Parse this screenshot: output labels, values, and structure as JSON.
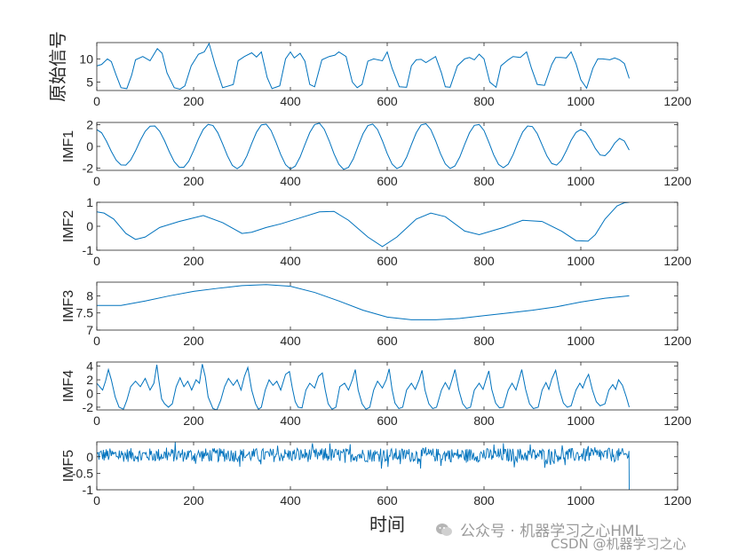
{
  "chart_data": {
    "type": "line",
    "xlabel": "时间",
    "xlim": [
      0,
      1200
    ],
    "xticks": [
      0,
      200,
      400,
      600,
      800,
      1000,
      1200
    ],
    "line_color": "#0072BD",
    "grid": false,
    "panels": [
      {
        "ylabel": "原始信号",
        "ylim": [
          3.2,
          13.5
        ],
        "yticks": [
          5,
          10
        ],
        "series": [
          {
            "x": [
              0,
              10,
              22,
              30,
              40,
              50,
              62,
              72,
              80,
              95,
              110,
              125,
              135,
              145,
              160,
              172,
              182,
              195,
              210,
              222,
              232,
              245,
              260,
              282,
              292,
              305,
              320,
              330,
              340,
              352,
              362,
              378,
              390,
              400,
              408,
              420,
              430,
              440,
              450,
              465,
              480,
              492,
              500,
              515,
              528,
              538,
              548,
              560,
              572,
              590,
              600,
              610,
              625,
              640,
              650,
              660,
              670,
              680,
              700,
              712,
              720,
              730,
              745,
              760,
              770,
              780,
              790,
              800,
              812,
              825,
              835,
              850,
              860,
              875,
              888,
              898,
              910,
              925,
              940,
              948,
              958,
              970,
              980,
              990,
              1000,
              1012,
              1025,
              1035,
              1045,
              1060,
              1070,
              1080,
              1090,
              1100
            ],
            "y": [
              8.5,
              8.8,
              10.0,
              9.4,
              6.5,
              3.8,
              3.6,
              6.5,
              9.8,
              10.5,
              9.6,
              12.2,
              11.2,
              7.0,
              3.8,
              3.5,
              4.2,
              8.5,
              11.0,
              11.5,
              13.3,
              8.5,
              3.8,
              4.5,
              9.6,
              10.5,
              11.3,
              10.4,
              11.5,
              6.0,
              3.6,
              4.2,
              10.0,
              11.5,
              10.2,
              11.2,
              9.5,
              4.5,
              4.0,
              9.8,
              10.5,
              10.8,
              11.5,
              10.5,
              5.0,
              3.8,
              4.5,
              9.5,
              10.0,
              9.6,
              11.5,
              8.0,
              4.0,
              3.9,
              8.5,
              9.8,
              9.9,
              9.2,
              10.5,
              7.0,
              4.0,
              3.9,
              8.5,
              10.0,
              10.3,
              9.8,
              11.0,
              10.0,
              5.0,
              3.9,
              8.5,
              9.8,
              10.5,
              10.3,
              11.5,
              8.0,
              4.5,
              4.3,
              8.8,
              10.3,
              10.3,
              10.2,
              11.5,
              9.0,
              5.5,
              3.7,
              8.0,
              10.0,
              10.0,
              9.8,
              10.2,
              9.8,
              9.0,
              5.8
            ]
          }
        ]
      },
      {
        "ylabel": "IMF1",
        "ylim": [
          -2.2,
          2.2
        ],
        "yticks": [
          -2,
          0,
          2
        ],
        "series": [
          {
            "x": [
              0,
              10,
              20,
              30,
              40,
              50,
              60,
              70,
              80,
              90,
              100,
              110,
              120,
              130,
              140,
              150,
              160,
              170,
              180,
              190,
              200,
              210,
              220,
              230,
              240,
              250,
              260,
              270,
              280,
              290,
              300,
              310,
              320,
              330,
              340,
              350,
              360,
              370,
              380,
              390,
              400,
              410,
              420,
              430,
              440,
              450,
              460,
              470,
              480,
              490,
              500,
              510,
              520,
              530,
              540,
              550,
              560,
              570,
              580,
              590,
              600,
              610,
              620,
              630,
              640,
              650,
              660,
              670,
              680,
              690,
              700,
              710,
              720,
              730,
              740,
              750,
              760,
              770,
              780,
              790,
              800,
              810,
              820,
              830,
              840,
              850,
              860,
              870,
              880,
              890,
              900,
              910,
              920,
              930,
              940,
              950,
              960,
              970,
              980,
              990,
              1000,
              1010,
              1020,
              1030,
              1040,
              1050,
              1060,
              1070,
              1080,
              1090,
              1100
            ],
            "y": [
              1.54,
              1.25,
              0.48,
              -0.46,
              -1.26,
              -1.7,
              -1.72,
              -1.25,
              -0.41,
              0.56,
              1.38,
              1.85,
              1.87,
              1.38,
              0.52,
              -0.51,
              -1.4,
              -1.9,
              -1.91,
              -1.36,
              -0.39,
              0.68,
              1.57,
              2.02,
              1.92,
              1.26,
              0.23,
              -0.87,
              -1.74,
              -2.05,
              -1.72,
              -0.88,
              0.26,
              1.31,
              1.98,
              2.04,
              1.46,
              0.41,
              -0.75,
              -1.68,
              -2.08,
              -1.81,
              -0.98,
              0.17,
              1.27,
              2.0,
              2.13,
              1.57,
              0.53,
              -0.67,
              -1.64,
              -2.11,
              -1.92,
              -1.14,
              0.04,
              1.16,
              1.91,
              2.05,
              1.55,
              0.52,
              -0.66,
              -1.62,
              -2.04,
              -1.81,
              -1.0,
              0.16,
              1.25,
              1.97,
              2.08,
              1.55,
              0.52,
              -0.66,
              -1.61,
              -2.03,
              -1.79,
              -0.97,
              0.18,
              1.25,
              1.93,
              2.01,
              1.46,
              0.38,
              -0.78,
              -1.65,
              -1.96,
              -1.63,
              -0.77,
              0.35,
              1.33,
              1.87,
              1.82,
              1.17,
              0.14,
              -0.88,
              -1.57,
              -1.72,
              -1.27,
              -0.41,
              0.56,
              1.28,
              1.55,
              1.31,
              0.65,
              -0.19,
              -0.79,
              -0.85,
              -0.4,
              0.3,
              0.73,
              0.49,
              -0.34
            ]
          }
        ]
      },
      {
        "ylabel": "IMF2",
        "ylim": [
          -1,
          1
        ],
        "yticks": [
          -1,
          0,
          1
        ],
        "series": [
          {
            "x": [
              0,
              15,
              35,
              60,
              80,
              100,
              130,
              170,
              220,
              260,
              300,
              320,
              350,
              380,
              420,
              460,
              490,
              520,
              560,
              590,
              620,
              660,
              690,
              720,
              760,
              790,
              840,
              880,
              920,
              960,
              990,
              1015,
              1030,
              1050,
              1075,
              1090,
              1100
            ],
            "y": [
              0.6,
              0.55,
              0.3,
              -0.3,
              -0.55,
              -0.45,
              -0.05,
              0.2,
              0.45,
              0.15,
              -0.3,
              -0.25,
              -0.05,
              0.1,
              0.35,
              0.6,
              0.62,
              0.25,
              -0.45,
              -0.85,
              -0.45,
              0.3,
              0.55,
              0.4,
              -0.2,
              -0.35,
              -0.05,
              0.25,
              0.2,
              -0.2,
              -0.6,
              -0.62,
              -0.35,
              0.3,
              0.85,
              0.98,
              1.0
            ]
          }
        ]
      },
      {
        "ylabel": "IMF3",
        "ylim": [
          7,
          8.4
        ],
        "yticks": [
          7,
          7.5,
          8
        ],
        "series": [
          {
            "x": [
              0,
              50,
              100,
              150,
              200,
              250,
              300,
              350,
              400,
              450,
              500,
              550,
              600,
              650,
              700,
              750,
              800,
              850,
              900,
              950,
              1000,
              1050,
              1100
            ],
            "y": [
              7.72,
              7.72,
              7.85,
              8.0,
              8.13,
              8.22,
              8.3,
              8.33,
              8.28,
              8.1,
              7.85,
              7.58,
              7.38,
              7.3,
              7.3,
              7.34,
              7.42,
              7.5,
              7.58,
              7.68,
              7.82,
              7.93,
              8.0
            ]
          }
        ]
      },
      {
        "ylabel": "IMF4",
        "ylim": [
          -2.4,
          4.6
        ],
        "yticks": [
          -2,
          0,
          2,
          4
        ],
        "series": [
          {
            "x": [
              0,
              6,
              12,
              18,
              24,
              30,
              38,
              46,
              55,
              62,
              70,
              80,
              90,
              100,
              110,
              118,
              124,
              128,
              134,
              140,
              148,
              156,
              164,
              172,
              180,
              188,
              196,
              205,
              212,
              218,
              224,
              230,
              240,
              248,
              256,
              264,
              272,
              282,
              290,
              298,
              305,
              312,
              320,
              328,
              334,
              340,
              348,
              356,
              364,
              372,
              380,
              390,
              398,
              404,
              410,
              416,
              424,
              432,
              440,
              450,
              458,
              466,
              472,
              478,
              486,
              494,
              502,
              512,
              520,
              528,
              534,
              540,
              548,
              556,
              564,
              572,
              580,
              590,
              598,
              604,
              610,
              616,
              624,
              632,
              640,
              650,
              658,
              666,
              672,
              678,
              686,
              694,
              702,
              712,
              720,
              728,
              734,
              740,
              748,
              756,
              764,
              772,
              780,
              790,
              798,
              804,
              810,
              816,
              824,
              832,
              840,
              850,
              858,
              866,
              872,
              878,
              886,
              894,
              902,
              912,
              920,
              928,
              934,
              940,
              948,
              956,
              964,
              972,
              980,
              990,
              998,
              1004,
              1010,
              1016,
              1024,
              1032,
              1040,
              1050,
              1058,
              1066,
              1072,
              1078,
              1086,
              1094,
              1100
            ],
            "y": [
              1.5,
              1.0,
              0.5,
              1.8,
              3.5,
              2.0,
              -0.5,
              -2.0,
              -2.3,
              -1.0,
              1.0,
              1.8,
              1.0,
              2.2,
              0.5,
              1.5,
              4.2,
              2.0,
              -0.8,
              -1.5,
              -2.0,
              -1.5,
              1.0,
              2.3,
              1.0,
              1.8,
              0.5,
              2.0,
              1.5,
              4.3,
              2.5,
              -0.5,
              -2.2,
              -2.4,
              -1.0,
              1.0,
              2.2,
              1.2,
              2.0,
              0.5,
              2.5,
              3.8,
              0.5,
              -1.5,
              -2.3,
              -2.0,
              0.5,
              2.0,
              1.2,
              1.8,
              0.5,
              2.8,
              3.2,
              0.8,
              -1.2,
              -2.0,
              -2.1,
              0.5,
              1.5,
              0.8,
              2.5,
              3.0,
              0.5,
              -1.5,
              -2.3,
              -2.0,
              1.0,
              1.5,
              0.5,
              2.0,
              3.5,
              0.5,
              -1.5,
              -2.3,
              -2.0,
              0.5,
              1.8,
              0.8,
              2.0,
              3.6,
              0.6,
              -1.4,
              -2.2,
              -2.0,
              0.5,
              1.5,
              0.6,
              2.0,
              3.4,
              0.5,
              -1.5,
              -2.2,
              -2.0,
              0.5,
              1.6,
              0.6,
              2.0,
              3.5,
              0.5,
              -1.5,
              -2.2,
              -2.0,
              0.5,
              1.5,
              0.6,
              2.0,
              3.3,
              0.6,
              -1.4,
              -2.1,
              -2.0,
              0.5,
              1.5,
              0.5,
              2.0,
              3.5,
              0.6,
              -1.5,
              -2.2,
              -2.0,
              0.5,
              1.6,
              0.6,
              2.1,
              3.4,
              0.5,
              -1.4,
              -2.0,
              -1.8,
              0.5,
              1.5,
              0.8,
              2.0,
              2.8,
              0.5,
              -1.2,
              -1.8,
              -1.5,
              0.5,
              1.3,
              0.6,
              2.0,
              1.2,
              -0.5,
              -2.0
            ]
          }
        ]
      },
      {
        "ylabel": "IMF5",
        "ylim": [
          -1,
          0.45
        ],
        "yticks": [
          -1,
          -0.5,
          0
        ],
        "noise": {
          "x_start": 0,
          "x_end": 1100,
          "mean": 0.05,
          "amplitude": 0.3,
          "end_value": -1.0
        }
      }
    ]
  },
  "watermark": {
    "line1": "公众号 · 机器学习之心HML",
    "line2": "CSDN @机器学习之心"
  }
}
